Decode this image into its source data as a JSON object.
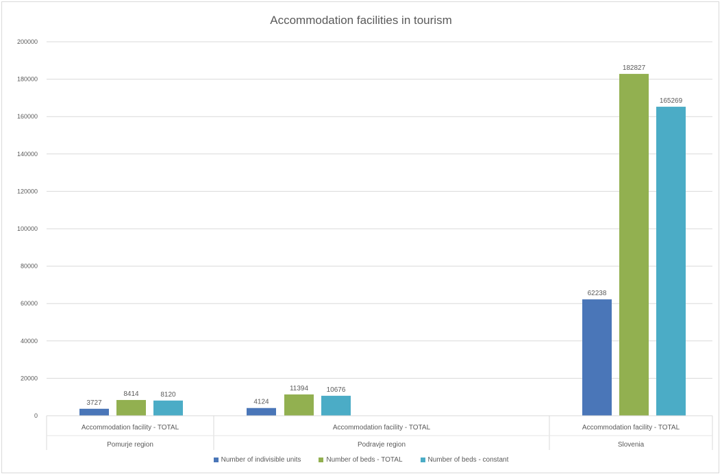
{
  "chart_data": {
    "type": "bar",
    "title": "Accommodation facilities in tourism",
    "groups": [
      {
        "category": "Accommodation facility - TOTAL",
        "region": "Pomurje region"
      },
      {
        "category": "Accommodation facility - TOTAL",
        "region": "Podravje region"
      },
      {
        "category": "Accommodation facility - TOTAL",
        "region": "Slovenia"
      }
    ],
    "series": [
      {
        "name": "Number of indivisible units",
        "color": "#4a76b8",
        "values": [
          3727,
          4124,
          62238
        ]
      },
      {
        "name": "Number of beds - TOTAL",
        "color": "#92b050",
        "values": [
          8414,
          11394,
          182827
        ]
      },
      {
        "name": "Number of beds - constant",
        "color": "#4bacc6",
        "values": [
          8120,
          10676,
          165269
        ]
      }
    ],
    "ylim": [
      0,
      200000
    ],
    "yticks": [
      "0",
      "20000",
      "40000",
      "60000",
      "80000",
      "100000",
      "120000",
      "140000",
      "160000",
      "180000",
      "200000"
    ],
    "grid": true,
    "legend_position": "bottom",
    "data_labels": true
  }
}
